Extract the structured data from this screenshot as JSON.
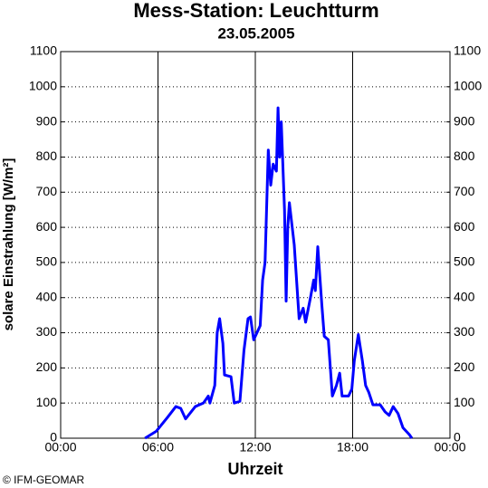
{
  "chart_data": {
    "type": "line",
    "title": "Mess-Station: Leuchtturm",
    "subtitle": "23.05.2005",
    "x_label": "Uhrzeit",
    "y_label": "solare Einstrahlung [W/m²]",
    "credit": "© IFM-GEOMAR",
    "xlim": [
      0,
      24
    ],
    "xticks": [
      {
        "value": 0,
        "label": "00:00"
      },
      {
        "value": 6,
        "label": "06:00"
      },
      {
        "value": 12,
        "label": "12:00"
      },
      {
        "value": 18,
        "label": "18:00"
      },
      {
        "value": 24,
        "label": "00:00"
      }
    ],
    "ylim": [
      0,
      1100
    ],
    "yticks": [
      0,
      100,
      200,
      300,
      400,
      500,
      600,
      700,
      800,
      900,
      1000,
      1100
    ],
    "y2lim": [
      0,
      1100
    ],
    "y2ticks": [
      0,
      100,
      200,
      300,
      400,
      500,
      600,
      700,
      800,
      900,
      1000,
      1100
    ],
    "grid": true,
    "series": [
      {
        "color": "#0000ff",
        "x": [
          5.2,
          5.9,
          6.6,
          7.1,
          7.4,
          7.7,
          8.3,
          8.8,
          9.1,
          9.2,
          9.5,
          9.65,
          9.8,
          10.0,
          10.1,
          10.5,
          10.7,
          11.05,
          11.3,
          11.55,
          11.7,
          11.9,
          12.3,
          12.45,
          12.6,
          12.8,
          12.95,
          13.1,
          13.3,
          13.4,
          13.5,
          13.6,
          13.8,
          13.9,
          14.0,
          14.1,
          14.4,
          14.7,
          14.95,
          15.1,
          15.4,
          15.6,
          15.7,
          15.85,
          16.1,
          16.25,
          16.5,
          16.75,
          17.0,
          17.2,
          17.35,
          17.75,
          17.95,
          18.1,
          18.35,
          18.6,
          18.8,
          19.0,
          19.25,
          19.7,
          20.0,
          20.25,
          20.5,
          20.8,
          21.1,
          21.5,
          21.65
        ],
        "values": [
          0,
          20,
          60,
          90,
          85,
          55,
          90,
          100,
          120,
          100,
          150,
          300,
          340,
          270,
          180,
          175,
          100,
          105,
          250,
          340,
          345,
          280,
          320,
          450,
          500,
          820,
          720,
          780,
          760,
          940,
          800,
          900,
          650,
          390,
          600,
          670,
          550,
          340,
          370,
          330,
          400,
          450,
          420,
          545,
          380,
          290,
          280,
          120,
          150,
          185,
          120,
          120,
          140,
          220,
          295,
          220,
          150,
          130,
          95,
          95,
          75,
          65,
          90,
          70,
          30,
          10,
          0
        ]
      }
    ]
  }
}
